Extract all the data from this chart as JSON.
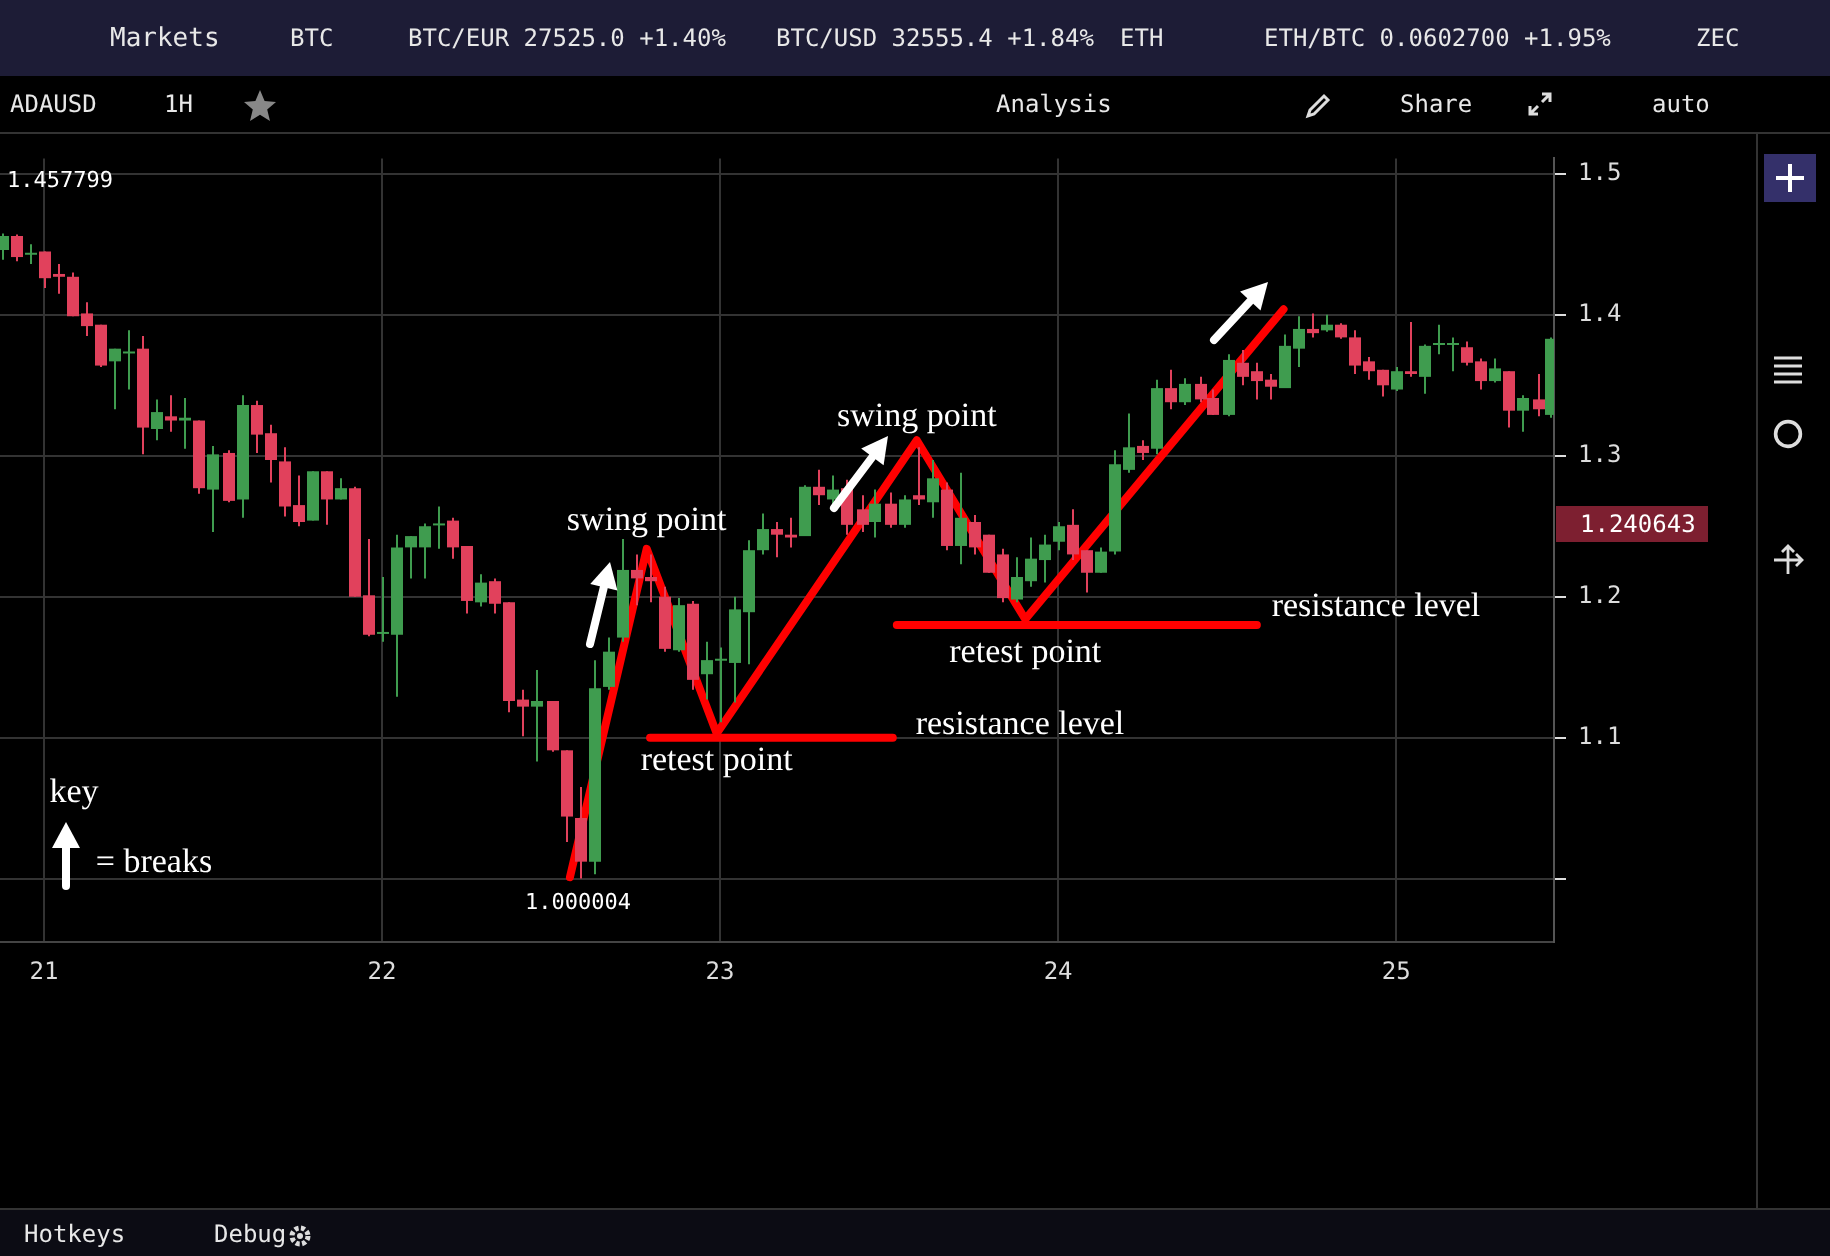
{
  "chart_data": {
    "type": "candlestick",
    "x": [
      20.875,
      20.917,
      20.958,
      21,
      21.042,
      21.083,
      21.125,
      21.167,
      21.208,
      21.25,
      21.292,
      21.333,
      21.375,
      21.417,
      21.458,
      21.5,
      21.542,
      21.583,
      21.625,
      21.667,
      21.708,
      21.75,
      21.792,
      21.833,
      21.875,
      21.917,
      21.958,
      22,
      22.042,
      22.083,
      22.125,
      22.167,
      22.208,
      22.25,
      22.292,
      22.333,
      22.375,
      22.417,
      22.458,
      22.5,
      22.542,
      22.583,
      22.625,
      22.667,
      22.708,
      22.75,
      22.792,
      22.833,
      22.875,
      22.917,
      22.958,
      23,
      23.042,
      23.083,
      23.125,
      23.167,
      23.208,
      23.25,
      23.292,
      23.333,
      23.375,
      23.417,
      23.458,
      23.5,
      23.542,
      23.583,
      23.625,
      23.667,
      23.708,
      23.75,
      23.792,
      23.833,
      23.875,
      23.917,
      23.958,
      24,
      24.042,
      24.083,
      24.125,
      24.167,
      24.208,
      24.25,
      24.292,
      24.333,
      24.375,
      24.417,
      24.458,
      24.5,
      24.542,
      24.583,
      24.625,
      24.667,
      24.708,
      24.75,
      24.792,
      24.833,
      24.875,
      24.917,
      24.958,
      25,
      25.042,
      25.083,
      25.125,
      25.167,
      25.208,
      25.25,
      25.292,
      25.333,
      25.375,
      25.417,
      25.458
    ],
    "ohlc": [
      [
        1.446,
        1.457799,
        1.439,
        1.456
      ],
      [
        1.456,
        1.457,
        1.438,
        1.441
      ],
      [
        1.443,
        1.45,
        1.436,
        1.444
      ],
      [
        1.445,
        1.445,
        1.419,
        1.426
      ],
      [
        1.429,
        1.436,
        1.415,
        1.427
      ],
      [
        1.427,
        1.43,
        1.399,
        1.399
      ],
      [
        1.401,
        1.409,
        1.385,
        1.392
      ],
      [
        1.393,
        1.393,
        1.363,
        1.364
      ],
      [
        1.367,
        1.376,
        1.333,
        1.376
      ],
      [
        1.373,
        1.389,
        1.347,
        1.374
      ],
      [
        1.376,
        1.385,
        1.301,
        1.32
      ],
      [
        1.319,
        1.34,
        1.311,
        1.331
      ],
      [
        1.328,
        1.343,
        1.317,
        1.325
      ],
      [
        1.325,
        1.341,
        1.305,
        1.327
      ],
      [
        1.325,
        1.325,
        1.273,
        1.277
      ],
      [
        1.276,
        1.307,
        1.246,
        1.301
      ],
      [
        1.302,
        1.304,
        1.267,
        1.268
      ],
      [
        1.269,
        1.343,
        1.256,
        1.336
      ],
      [
        1.336,
        1.339,
        1.302,
        1.315
      ],
      [
        1.316,
        1.322,
        1.281,
        1.297
      ],
      [
        1.296,
        1.306,
        1.257,
        1.264
      ],
      [
        1.265,
        1.286,
        1.25,
        1.253
      ],
      [
        1.254,
        1.289,
        1.254,
        1.289
      ],
      [
        1.289,
        1.289,
        1.251,
        1.269
      ],
      [
        1.269,
        1.284,
        1.269,
        1.277
      ],
      [
        1.277,
        1.278,
        1.2,
        1.2
      ],
      [
        1.201,
        1.241,
        1.172,
        1.173
      ],
      [
        1.174,
        1.214,
        1.168,
        1.175
      ],
      [
        1.173,
        1.244,
        1.129,
        1.235
      ],
      [
        1.235,
        1.243,
        1.213,
        1.243
      ],
      [
        1.235,
        1.252,
        1.213,
        1.25
      ],
      [
        1.251,
        1.264,
        1.234,
        1.252
      ],
      [
        1.254,
        1.256,
        1.227,
        1.235
      ],
      [
        1.236,
        1.236,
        1.188,
        1.197
      ],
      [
        1.196,
        1.216,
        1.193,
        1.21
      ],
      [
        1.211,
        1.213,
        1.188,
        1.195
      ],
      [
        1.196,
        1.196,
        1.118,
        1.126
      ],
      [
        1.127,
        1.134,
        1.101,
        1.122
      ],
      [
        1.122,
        1.148,
        1.083,
        1.126
      ],
      [
        1.126,
        1.126,
        1.09,
        1.091
      ],
      [
        1.091,
        1.091,
        1.026,
        1.044
      ],
      [
        1.043,
        1.065,
        1.000004,
        1.012
      ],
      [
        1.012,
        1.155,
        1.003,
        1.135
      ],
      [
        1.136,
        1.171,
        1.134,
        1.161
      ],
      [
        1.171,
        1.241,
        1.168,
        1.219
      ],
      [
        1.219,
        1.23,
        1.194,
        1.213
      ],
      [
        1.214,
        1.23,
        1.196,
        1.211
      ],
      [
        1.2,
        1.207,
        1.161,
        1.163
      ],
      [
        1.162,
        1.199,
        1.161,
        1.194
      ],
      [
        1.195,
        1.197,
        1.134,
        1.141
      ],
      [
        1.145,
        1.168,
        1.127,
        1.155
      ],
      [
        1.155,
        1.164,
        1.111,
        1.156
      ],
      [
        1.153,
        1.2,
        1.125,
        1.191
      ],
      [
        1.189,
        1.24,
        1.152,
        1.233
      ],
      [
        1.233,
        1.259,
        1.23,
        1.248
      ],
      [
        1.248,
        1.253,
        1.228,
        1.244
      ],
      [
        1.244,
        1.256,
        1.235,
        1.242
      ],
      [
        1.243,
        1.279,
        1.243,
        1.278
      ],
      [
        1.278,
        1.29,
        1.265,
        1.272
      ],
      [
        1.269,
        1.286,
        1.263,
        1.276
      ],
      [
        1.277,
        1.283,
        1.244,
        1.251
      ],
      [
        1.262,
        1.272,
        1.246,
        1.251
      ],
      [
        1.253,
        1.276,
        1.242,
        1.266
      ],
      [
        1.266,
        1.274,
        1.249,
        1.251
      ],
      [
        1.251,
        1.272,
        1.249,
        1.269
      ],
      [
        1.272,
        1.306,
        1.265,
        1.269
      ],
      [
        1.267,
        1.297,
        1.256,
        1.284
      ],
      [
        1.276,
        1.281,
        1.233,
        1.236
      ],
      [
        1.236,
        1.288,
        1.223,
        1.256
      ],
      [
        1.253,
        1.258,
        1.23,
        1.235
      ],
      [
        1.244,
        1.244,
        1.217,
        1.217
      ],
      [
        1.23,
        1.234,
        1.196,
        1.199
      ],
      [
        1.198,
        1.228,
        1.196,
        1.214
      ],
      [
        1.211,
        1.242,
        1.207,
        1.227
      ],
      [
        1.226,
        1.244,
        1.21,
        1.237
      ],
      [
        1.239,
        1.253,
        1.233,
        1.25
      ],
      [
        1.251,
        1.262,
        1.226,
        1.23
      ],
      [
        1.233,
        1.233,
        1.203,
        1.217
      ],
      [
        1.217,
        1.235,
        1.217,
        1.232
      ],
      [
        1.232,
        1.304,
        1.23,
        1.294
      ],
      [
        1.29,
        1.33,
        1.288,
        1.306
      ],
      [
        1.307,
        1.311,
        1.297,
        1.302
      ],
      [
        1.305,
        1.354,
        1.301,
        1.348
      ],
      [
        1.348,
        1.361,
        1.333,
        1.338
      ],
      [
        1.338,
        1.355,
        1.336,
        1.351
      ],
      [
        1.351,
        1.356,
        1.338,
        1.34
      ],
      [
        1.341,
        1.347,
        1.329,
        1.329
      ],
      [
        1.329,
        1.372,
        1.328,
        1.368
      ],
      [
        1.366,
        1.375,
        1.35,
        1.356
      ],
      [
        1.36,
        1.366,
        1.34,
        1.353
      ],
      [
        1.354,
        1.358,
        1.34,
        1.349
      ],
      [
        1.348,
        1.386,
        1.348,
        1.378
      ],
      [
        1.376,
        1.399,
        1.363,
        1.39
      ],
      [
        1.39,
        1.401,
        1.384,
        1.387
      ],
      [
        1.389,
        1.4,
        1.388,
        1.393
      ],
      [
        1.393,
        1.394,
        1.383,
        1.384
      ],
      [
        1.384,
        1.389,
        1.358,
        1.364
      ],
      [
        1.367,
        1.37,
        1.354,
        1.36
      ],
      [
        1.361,
        1.361,
        1.342,
        1.35
      ],
      [
        1.347,
        1.363,
        1.346,
        1.36
      ],
      [
        1.36,
        1.395,
        1.356,
        1.358
      ],
      [
        1.356,
        1.379,
        1.344,
        1.378
      ],
      [
        1.379,
        1.393,
        1.372,
        1.38
      ],
      [
        1.379,
        1.384,
        1.36,
        1.38
      ],
      [
        1.377,
        1.381,
        1.364,
        1.366
      ],
      [
        1.367,
        1.369,
        1.347,
        1.353
      ],
      [
        1.353,
        1.369,
        1.352,
        1.362
      ],
      [
        1.36,
        1.36,
        1.32,
        1.332
      ],
      [
        1.332,
        1.343,
        1.317,
        1.341
      ],
      [
        1.34,
        1.358,
        1.328,
        1.333
      ],
      [
        1.329,
        1.384,
        1.327,
        1.383
      ]
    ],
    "colors": [
      "#3f9c4f",
      "#e1415c",
      "#3f9c4f",
      "#e1415c",
      "#e1415c",
      "#e1415c",
      "#e1415c",
      "#e1415c",
      "#3f9c4f",
      "#3f9c4f",
      "#e1415c",
      "#3f9c4f",
      "#e1415c",
      "#3f9c4f",
      "#e1415c",
      "#3f9c4f",
      "#e1415c",
      "#3f9c4f",
      "#e1415c",
      "#e1415c",
      "#e1415c",
      "#e1415c",
      "#3f9c4f",
      "#e1415c",
      "#3f9c4f",
      "#e1415c",
      "#e1415c",
      "#3f9c4f",
      "#3f9c4f",
      "#3f9c4f",
      "#3f9c4f",
      "#3f9c4f",
      "#e1415c",
      "#e1415c",
      "#3f9c4f",
      "#e1415c",
      "#e1415c",
      "#e1415c",
      "#3f9c4f",
      "#e1415c",
      "#e1415c",
      "#e1415c",
      "#3f9c4f",
      "#3f9c4f",
      "#3f9c4f",
      "#e1415c",
      "#e1415c",
      "#e1415c",
      "#3f9c4f",
      "#e1415c",
      "#3f9c4f",
      "#3f9c4f",
      "#3f9c4f",
      "#3f9c4f",
      "#3f9c4f",
      "#e1415c",
      "#e1415c",
      "#3f9c4f",
      "#e1415c",
      "#3f9c4f",
      "#e1415c",
      "#e1415c",
      "#3f9c4f",
      "#e1415c",
      "#3f9c4f",
      "#e1415c",
      "#3f9c4f",
      "#e1415c",
      "#3f9c4f",
      "#e1415c",
      "#e1415c",
      "#e1415c",
      "#3f9c4f",
      "#3f9c4f",
      "#3f9c4f",
      "#3f9c4f",
      "#e1415c",
      "#e1415c",
      "#3f9c4f",
      "#3f9c4f",
      "#3f9c4f",
      "#e1415c",
      "#3f9c4f",
      "#e1415c",
      "#3f9c4f",
      "#e1415c",
      "#e1415c",
      "#3f9c4f",
      "#e1415c",
      "#e1415c",
      "#e1415c",
      "#3f9c4f",
      "#3f9c4f",
      "#e1415c",
      "#3f9c4f",
      "#e1415c",
      "#e1415c",
      "#e1415c",
      "#e1415c",
      "#3f9c4f",
      "#e1415c",
      "#3f9c4f",
      "#3f9c4f",
      "#3f9c4f",
      "#e1415c",
      "#e1415c",
      "#3f9c4f",
      "#e1415c",
      "#3f9c4f",
      "#e1415c",
      "#3f9c4f"
    ],
    "series": [
      {
        "type": "line",
        "color": "#ff0000",
        "x": [
          22.556,
          22.783,
          22.99,
          23.582,
          23.903,
          24.667
        ],
        "values": [
          1.001,
          1.234,
          1.103,
          1.311,
          1.184,
          1.404
        ]
      },
      {
        "type": "line",
        "color": "#ff0000",
        "x": [
          22.793,
          23.511
        ],
        "values": [
          1.1,
          1.1
        ]
      },
      {
        "type": "line",
        "color": "#ff0000",
        "x": [
          23.523,
          24.588
        ],
        "values": [
          1.18,
          1.18
        ]
      }
    ],
    "xlim": [
      20.87,
      25.467
    ],
    "ylim": [
      0.955,
      1.511
    ],
    "xticks": [
      21,
      22,
      23,
      24,
      25
    ],
    "yticks": [
      {
        "value": 1.0,
        "label": null
      },
      1.1,
      1.2,
      1.3,
      1.4,
      1.5
    ],
    "grid": true,
    "annotations": [
      "1.457799",
      "1.000004",
      {
        "text": "swing point",
        "x": 22.783,
        "y": 1.234
      },
      {
        "text": "retest point",
        "x": 22.99,
        "y": 1.103
      },
      "resistance level",
      {
        "text": "swing point",
        "x": 23.582,
        "y": 1.311
      },
      {
        "text": "retest point",
        "x": 23.903,
        "y": 1.184
      },
      "resistance level",
      "key",
      "= breaks",
      "1.240643",
      "Markets",
      "BTC",
      "BTC/EUR 27525.0 +1.40%",
      "BTC/USD 32555.4 +1.84%",
      "ETH",
      "ETH/BTC 0.0602700 +1.95%",
      "ZEC",
      "ADAUSD",
      "1H",
      "Analysis",
      "Share",
      "auto",
      "Hotkeys",
      "Debug"
    ]
  }
}
